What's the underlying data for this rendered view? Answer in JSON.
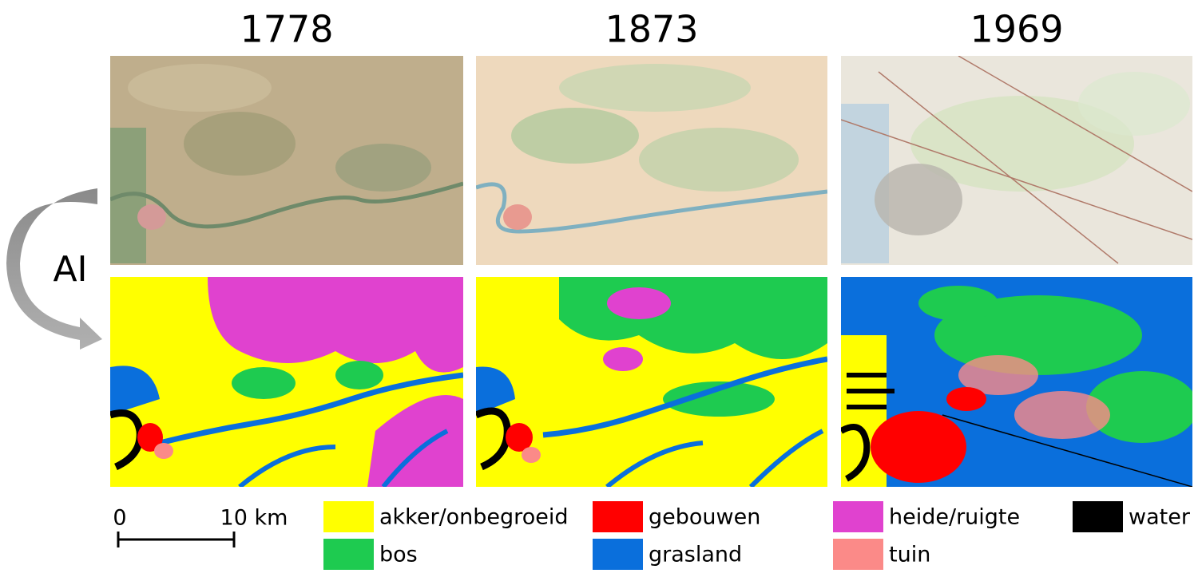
{
  "columns": [
    {
      "year": "1778"
    },
    {
      "year": "1873"
    },
    {
      "year": "1969"
    }
  ],
  "annotation": {
    "label": "AI"
  },
  "scale_bar": {
    "start": "0",
    "end": "10 km"
  },
  "legend": {
    "items": [
      {
        "label": "akker/onbegroeid",
        "color": "#ffff00"
      },
      {
        "label": "bos",
        "color": "#1ecb50"
      },
      {
        "label": "gebouwen",
        "color": "#ff0000"
      },
      {
        "label": "grasland",
        "color": "#0a6fdc"
      },
      {
        "label": "heide/ruigte",
        "color": "#e042cf"
      },
      {
        "label": "tuin",
        "color": "#fb8a88"
      },
      {
        "label": "water",
        "color": "#000000"
      }
    ]
  }
}
